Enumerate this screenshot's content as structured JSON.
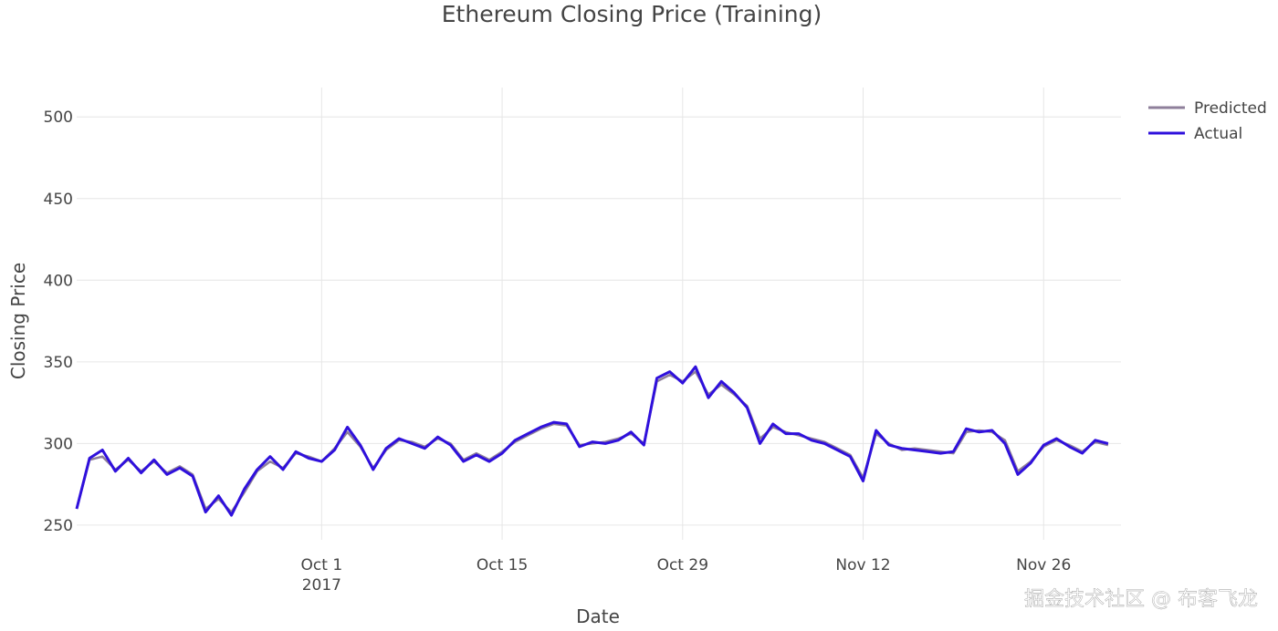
{
  "chart_data": {
    "type": "line",
    "title": "Ethereum Closing Price (Training)",
    "xlabel": "Date",
    "ylabel": "Closing Price",
    "x_range": [
      "2017-09-12",
      "2017-12-02"
    ],
    "ylim": [
      241,
      518
    ],
    "x_ticks": [
      {
        "date": "2017-10-01",
        "label": "Oct 1",
        "sublabel": "2017"
      },
      {
        "date": "2017-10-15",
        "label": "Oct 15",
        "sublabel": ""
      },
      {
        "date": "2017-10-29",
        "label": "Oct 29",
        "sublabel": ""
      },
      {
        "date": "2017-11-12",
        "label": "Nov 12",
        "sublabel": ""
      },
      {
        "date": "2017-11-26",
        "label": "Nov 26",
        "sublabel": ""
      }
    ],
    "y_ticks": [
      250,
      300,
      350,
      400,
      450,
      500
    ],
    "grid": true,
    "legend_position": "top-right",
    "series": [
      {
        "name": "Predicted",
        "color": "#8e7f9a",
        "points": [
          [
            "2017-09-12",
            260
          ],
          [
            "2017-09-13",
            290
          ],
          [
            "2017-09-14",
            292
          ],
          [
            "2017-09-15",
            284
          ],
          [
            "2017-09-16",
            290
          ],
          [
            "2017-09-17",
            283
          ],
          [
            "2017-09-18",
            289
          ],
          [
            "2017-09-19",
            282
          ],
          [
            "2017-09-20",
            286
          ],
          [
            "2017-09-21",
            281
          ],
          [
            "2017-09-22",
            260
          ],
          [
            "2017-09-23",
            266
          ],
          [
            "2017-09-24",
            258
          ],
          [
            "2017-09-25",
            270
          ],
          [
            "2017-09-26",
            283
          ],
          [
            "2017-09-27",
            289
          ],
          [
            "2017-09-28",
            285
          ],
          [
            "2017-09-29",
            294
          ],
          [
            "2017-09-30",
            292
          ],
          [
            "2017-10-01",
            289
          ],
          [
            "2017-10-02",
            297
          ],
          [
            "2017-10-03",
            307
          ],
          [
            "2017-10-04",
            298
          ],
          [
            "2017-10-05",
            285
          ],
          [
            "2017-10-06",
            296
          ],
          [
            "2017-10-07",
            302
          ],
          [
            "2017-10-08",
            301
          ],
          [
            "2017-10-09",
            298
          ],
          [
            "2017-10-10",
            303
          ],
          [
            "2017-10-11",
            300
          ],
          [
            "2017-10-12",
            290
          ],
          [
            "2017-10-13",
            294
          ],
          [
            "2017-10-14",
            290
          ],
          [
            "2017-10-15",
            295
          ],
          [
            "2017-10-16",
            301
          ],
          [
            "2017-10-17",
            305
          ],
          [
            "2017-10-18",
            309
          ],
          [
            "2017-10-19",
            312
          ],
          [
            "2017-10-20",
            311
          ],
          [
            "2017-10-21",
            299
          ],
          [
            "2017-10-22",
            300
          ],
          [
            "2017-10-23",
            301
          ],
          [
            "2017-10-24",
            303
          ],
          [
            "2017-10-25",
            306
          ],
          [
            "2017-10-26",
            300
          ],
          [
            "2017-10-27",
            338
          ],
          [
            "2017-10-28",
            342
          ],
          [
            "2017-10-29",
            338
          ],
          [
            "2017-10-30",
            344
          ],
          [
            "2017-10-31",
            330
          ],
          [
            "2017-11-01",
            336
          ],
          [
            "2017-11-02",
            330
          ],
          [
            "2017-11-03",
            323
          ],
          [
            "2017-11-04",
            303
          ],
          [
            "2017-11-05",
            310
          ],
          [
            "2017-11-06",
            307
          ],
          [
            "2017-11-07",
            305
          ],
          [
            "2017-11-08",
            303
          ],
          [
            "2017-11-09",
            301
          ],
          [
            "2017-11-10",
            297
          ],
          [
            "2017-11-11",
            293
          ],
          [
            "2017-11-12",
            279
          ],
          [
            "2017-11-13",
            306
          ],
          [
            "2017-11-14",
            300
          ],
          [
            "2017-11-15",
            296
          ],
          [
            "2017-11-16",
            297
          ],
          [
            "2017-11-17",
            296
          ],
          [
            "2017-11-18",
            295
          ],
          [
            "2017-11-19",
            294
          ],
          [
            "2017-11-20",
            307
          ],
          [
            "2017-11-21",
            308
          ],
          [
            "2017-11-22",
            307
          ],
          [
            "2017-11-23",
            302
          ],
          [
            "2017-11-24",
            283
          ],
          [
            "2017-11-25",
            289
          ],
          [
            "2017-11-26",
            298
          ],
          [
            "2017-11-27",
            302
          ],
          [
            "2017-11-28",
            299
          ],
          [
            "2017-11-29",
            295
          ],
          [
            "2017-11-30",
            301
          ],
          [
            "2017-12-01",
            299
          ]
        ]
      },
      {
        "name": "Actual",
        "color": "#2f10dc",
        "points": [
          [
            "2017-09-12",
            260
          ],
          [
            "2017-09-13",
            291
          ],
          [
            "2017-09-14",
            296
          ],
          [
            "2017-09-15",
            283
          ],
          [
            "2017-09-16",
            291
          ],
          [
            "2017-09-17",
            282
          ],
          [
            "2017-09-18",
            290
          ],
          [
            "2017-09-19",
            281
          ],
          [
            "2017-09-20",
            285
          ],
          [
            "2017-09-21",
            280
          ],
          [
            "2017-09-22",
            258
          ],
          [
            "2017-09-23",
            268
          ],
          [
            "2017-09-24",
            256
          ],
          [
            "2017-09-25",
            272
          ],
          [
            "2017-09-26",
            284
          ],
          [
            "2017-09-27",
            292
          ],
          [
            "2017-09-28",
            284
          ],
          [
            "2017-09-29",
            295
          ],
          [
            "2017-09-30",
            291
          ],
          [
            "2017-10-01",
            289
          ],
          [
            "2017-10-02",
            296
          ],
          [
            "2017-10-03",
            310
          ],
          [
            "2017-10-04",
            299
          ],
          [
            "2017-10-05",
            284
          ],
          [
            "2017-10-06",
            297
          ],
          [
            "2017-10-07",
            303
          ],
          [
            "2017-10-08",
            300
          ],
          [
            "2017-10-09",
            297
          ],
          [
            "2017-10-10",
            304
          ],
          [
            "2017-10-11",
            299
          ],
          [
            "2017-10-12",
            289
          ],
          [
            "2017-10-13",
            293
          ],
          [
            "2017-10-14",
            289
          ],
          [
            "2017-10-15",
            294
          ],
          [
            "2017-10-16",
            302
          ],
          [
            "2017-10-17",
            306
          ],
          [
            "2017-10-18",
            310
          ],
          [
            "2017-10-19",
            313
          ],
          [
            "2017-10-20",
            312
          ],
          [
            "2017-10-21",
            298
          ],
          [
            "2017-10-22",
            301
          ],
          [
            "2017-10-23",
            300
          ],
          [
            "2017-10-24",
            302
          ],
          [
            "2017-10-25",
            307
          ],
          [
            "2017-10-26",
            299
          ],
          [
            "2017-10-27",
            340
          ],
          [
            "2017-10-28",
            344
          ],
          [
            "2017-10-29",
            337
          ],
          [
            "2017-10-30",
            347
          ],
          [
            "2017-10-31",
            328
          ],
          [
            "2017-11-01",
            338
          ],
          [
            "2017-11-02",
            331
          ],
          [
            "2017-11-03",
            322
          ],
          [
            "2017-11-04",
            300
          ],
          [
            "2017-11-05",
            312
          ],
          [
            "2017-11-06",
            306
          ],
          [
            "2017-11-07",
            306
          ],
          [
            "2017-11-08",
            302
          ],
          [
            "2017-11-09",
            300
          ],
          [
            "2017-11-10",
            296
          ],
          [
            "2017-11-11",
            292
          ],
          [
            "2017-11-12",
            277
          ],
          [
            "2017-11-13",
            308
          ],
          [
            "2017-11-14",
            299
          ],
          [
            "2017-11-15",
            297
          ],
          [
            "2017-11-16",
            296
          ],
          [
            "2017-11-17",
            295
          ],
          [
            "2017-11-18",
            294
          ],
          [
            "2017-11-19",
            295
          ],
          [
            "2017-11-20",
            309
          ],
          [
            "2017-11-21",
            307
          ],
          [
            "2017-11-22",
            308
          ],
          [
            "2017-11-23",
            300
          ],
          [
            "2017-11-24",
            281
          ],
          [
            "2017-11-25",
            288
          ],
          [
            "2017-11-26",
            299
          ],
          [
            "2017-11-27",
            303
          ],
          [
            "2017-11-28",
            298
          ],
          [
            "2017-11-29",
            294
          ],
          [
            "2017-11-30",
            302
          ],
          [
            "2017-12-01",
            300
          ]
        ]
      }
    ],
    "legend": [
      {
        "label": "Predicted",
        "color": "#8e7f9a"
      },
      {
        "label": "Actual",
        "color": "#2f10dc"
      }
    ]
  },
  "watermark": "掘金技术社区 @ 布客飞龙"
}
